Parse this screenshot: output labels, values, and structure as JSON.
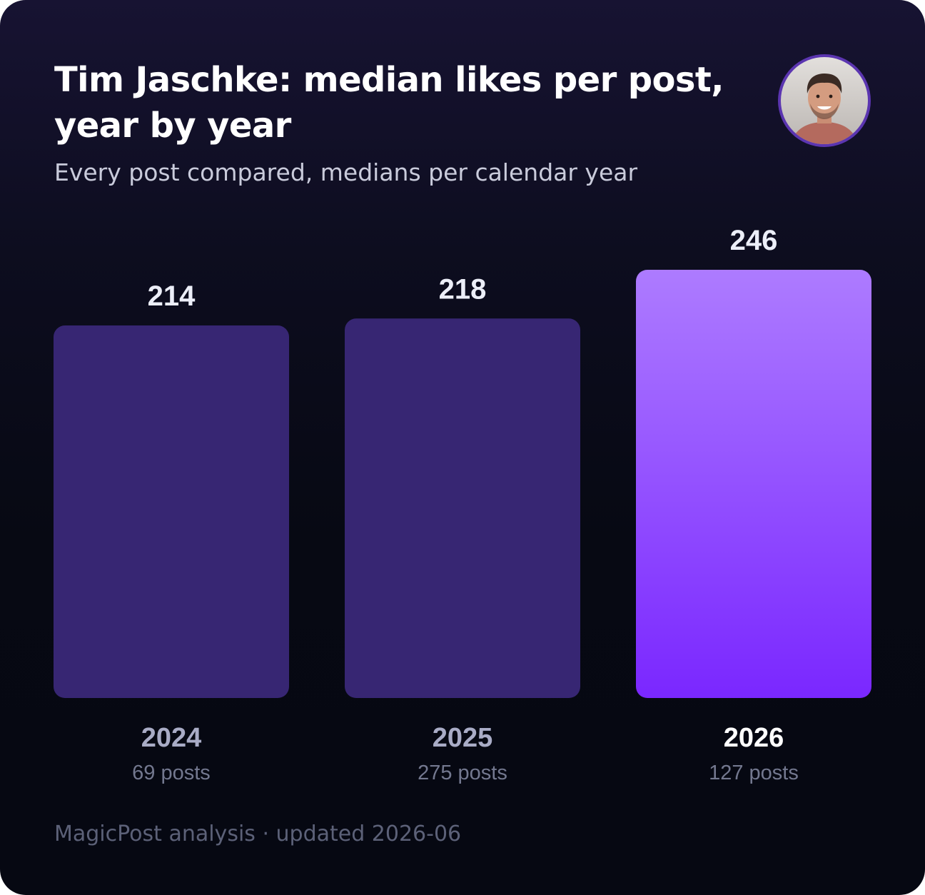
{
  "header": {
    "title": "Tim Jaschke: median likes per post, year by year",
    "subtitle": "Every post compared, medians per calendar year"
  },
  "footer": {
    "text": "MagicPost analysis · updated 2026-06"
  },
  "colors": {
    "bar_default": "#372673",
    "bar_highlight_top": "#ad7bff",
    "bar_highlight_bottom": "#7a27ff",
    "value_label": "#eceef8",
    "year_label": "#a9acc6",
    "year_label_highlight": "#ffffff",
    "count_label": "#73788f",
    "avatar_ring": "#5b35b0"
  },
  "chart_data": {
    "type": "bar",
    "categories": [
      "2024",
      "2025",
      "2026"
    ],
    "values": [
      214,
      218,
      246
    ],
    "post_counts": [
      "69 posts",
      "275 posts",
      "127 posts"
    ],
    "highlight_index": 2
  }
}
